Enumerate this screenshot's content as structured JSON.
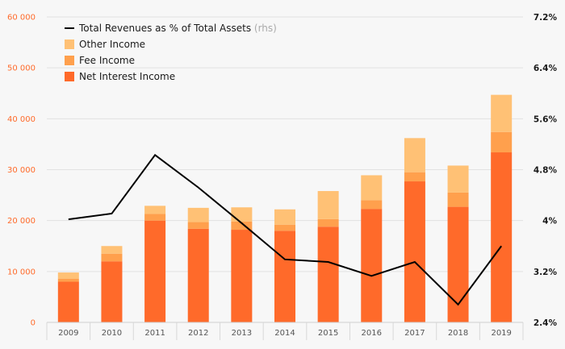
{
  "chart_data": {
    "type": "bar",
    "stacked": true,
    "categories": [
      "2009",
      "2010",
      "2011",
      "2012",
      "2013",
      "2014",
      "2015",
      "2016",
      "2017",
      "2018",
      "2019"
    ],
    "series": [
      {
        "name": "Net Interest Income",
        "color": "#ff6a2a",
        "values": [
          8000,
          12000,
          20000,
          18400,
          18200,
          18000,
          18800,
          22300,
          27700,
          22700,
          33400
        ]
      },
      {
        "name": "Fee Income",
        "color": "#ffa04d",
        "values": [
          600,
          1500,
          1300,
          1300,
          1600,
          1200,
          1500,
          1700,
          1800,
          2800,
          4000
        ]
      },
      {
        "name": "Other Income",
        "color": "#ffc175",
        "values": [
          1200,
          1500,
          1600,
          2800,
          2800,
          3000,
          5500,
          4900,
          6700,
          5300,
          7300
        ]
      }
    ],
    "line_series": {
      "name": "Total Revenues as % of Total Assets",
      "axis_note": "(rhs)",
      "color": "#000000",
      "values": [
        4.02,
        4.11,
        5.03,
        4.52,
        3.96,
        3.39,
        3.35,
        3.13,
        3.35,
        2.68,
        3.6
      ]
    },
    "y_left": {
      "min": 0,
      "max": 60000,
      "ticks": [
        "0",
        "10 000",
        "20 000",
        "30 000",
        "40 000",
        "50 000",
        "60 000"
      ],
      "tick_values": [
        0,
        10000,
        20000,
        30000,
        40000,
        50000,
        60000
      ]
    },
    "y_right": {
      "min": 2.4,
      "max": 7.2,
      "ticks": [
        "2.4%",
        "3.2%",
        "4%",
        "4.8%",
        "5.6%",
        "6.4%",
        "7.2%"
      ],
      "tick_values": [
        2.4,
        3.2,
        4.0,
        4.8,
        5.6,
        6.4,
        7.2
      ]
    },
    "legend": [
      {
        "label": "Total Revenues as % of Total Assets",
        "suffix": "(rhs)",
        "kind": "line",
        "color": "#000000"
      },
      {
        "label": "Other Income",
        "kind": "box",
        "color": "#ffc175"
      },
      {
        "label": "Fee Income",
        "kind": "box",
        "color": "#ffa04d"
      },
      {
        "label": "Net Interest Income",
        "kind": "box",
        "color": "#ff6a2a"
      }
    ],
    "legend_position": "top-left",
    "grid": true
  }
}
